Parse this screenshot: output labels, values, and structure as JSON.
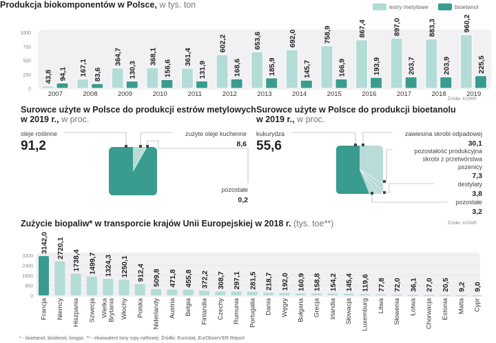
{
  "colors": {
    "estry": "#b4dcd7",
    "bioetanol": "#3a9c8e",
    "panel": "#f1f0f3",
    "lightSlice": "#b9dcd8"
  },
  "chart_data": [
    {
      "type": "bar",
      "title": "Produkcja biokomponentów w Polsce,",
      "subtitle": "w tys. ton",
      "categories": [
        "2007",
        "2008",
        "2009",
        "2010",
        "2011",
        "2012",
        "2013",
        "2014",
        "2015",
        "2016",
        "2017",
        "2018",
        "2019"
      ],
      "series": [
        {
          "name": "estry metylowe",
          "values": [
            43.8,
            167.1,
            364.7,
            368.1,
            361.4,
            602.2,
            653.6,
            692.0,
            758.9,
            867.4,
            897.0,
            883.3,
            960.2
          ],
          "labels": [
            "43,8",
            "167,1",
            "364,7",
            "368,1",
            "361,4",
            "602,2",
            "653,6",
            "692,0",
            "758,9",
            "867,4",
            "897,0",
            "883,3",
            "960,2"
          ]
        },
        {
          "name": "bioetanol",
          "values": [
            94.1,
            83.6,
            130.3,
            156.6,
            131.9,
            168.6,
            185.9,
            145.7,
            166.9,
            193.9,
            203.7,
            203.9,
            225.5
          ],
          "labels": [
            "94,1",
            "83,6",
            "130,3",
            "156,6",
            "131,9",
            "168,6",
            "185,9",
            "145,7",
            "166,9",
            "193,9",
            "203,7",
            "203,9",
            "225,5"
          ]
        }
      ],
      "yticks": [
        "0",
        "250",
        "500",
        "750",
        "1000"
      ],
      "ylim": [
        0,
        1000
      ],
      "legend": "top-right",
      "source": "Źródło: KOWR"
    },
    {
      "type": "pie",
      "title": "Surowce użyte w Polsce do produkcji estrów metylowych",
      "title2": "w 2019 r.,",
      "subtitle": "w proc.",
      "slices": [
        {
          "name": "oleje roślinne",
          "value": 91.2,
          "label": "91,2"
        },
        {
          "name": "zużyte oleje kuchenne",
          "value": 8.6,
          "label": "8,6"
        },
        {
          "name": "pozostałe",
          "value": 0.2,
          "label": "0,2"
        }
      ]
    },
    {
      "type": "pie",
      "title": "Surowce użyte w Polsce do produkcji bioetanolu",
      "title2": "w 2019 r.,",
      "subtitle": "w proc.",
      "slices": [
        {
          "name": "kukurydza",
          "value": 55.6,
          "label": "55,6"
        },
        {
          "name": "zawiesina skrobi odpadowej",
          "value": 30.1,
          "label": "30,1"
        },
        {
          "name": "pozostałość produkcyjna skrobi z przetwórstwa pszenicy",
          "lines": [
            "pozostałość produkcyjna",
            "skrobi z przetwórstwa",
            "pszenicy"
          ],
          "value": 7.3,
          "label": "7,3"
        },
        {
          "name": "destylaty",
          "value": 3.8,
          "label": "3,8"
        },
        {
          "name": "pozostałe",
          "value": 3.2,
          "label": "3,2"
        }
      ],
      "source": "Źródło: KOWR"
    },
    {
      "type": "bar",
      "title": "Zużycie biopaliw* w transporcie krajów Unii Europejskiej w 2018 r.",
      "subtitle": "(tys. toe**)",
      "categories": [
        "Francja",
        "Niemcy",
        "Hiszpania",
        "Szwecja",
        "Wielka Brytania",
        "Włochy",
        "Polska",
        "Niderlandy",
        "Austria",
        "Belgia",
        "Finlandia",
        "Czechy",
        "Rumunia",
        "Portugalia",
        "Dania",
        "Węgry",
        "Bułgaria",
        "Grecja",
        "Irlandia",
        "Słowacja",
        "Luxemburg",
        "Litwa",
        "Słowenia",
        "Łotwa",
        "Chorwacja",
        "Estonia",
        "Malta",
        "Cypr"
      ],
      "values": [
        3142.0,
        2720.1,
        1738.4,
        1499.7,
        1324.3,
        1250.1,
        912.4,
        509.8,
        471.8,
        455.8,
        372.2,
        308.7,
        297.1,
        281.5,
        218.7,
        192.0,
        160.9,
        158.8,
        154.2,
        145.4,
        119.6,
        77.8,
        72.0,
        36.1,
        27.0,
        20.5,
        9.2,
        9.0
      ],
      "labels": [
        "3142,0",
        "2720,1",
        "1738,4",
        "1499,7",
        "1324,3",
        "1250,1",
        "912,4",
        "509,8",
        "471,8",
        "455,8",
        "372,2",
        "308,7",
        "297,1",
        "281,5",
        "218,7",
        "192,0",
        "160,9",
        "158,8",
        "154,2",
        "145,4",
        "119,6",
        "77,8",
        "72,0",
        "36,1",
        "27,0",
        "20,5",
        "9,2",
        "9,0"
      ],
      "yticks": [
        "0",
        "800",
        "1600",
        "2400",
        "3200"
      ],
      "ylim": [
        0,
        3200
      ],
      "highlight": "Francja",
      "source": "Źródło: KOWR"
    }
  ],
  "footnote": "* - bioetanol, biodiesel, biogaz.  ** - ekwiwalent tony ropy naftowej.  Źródło: Eurostat, EurObserv'ER Report"
}
